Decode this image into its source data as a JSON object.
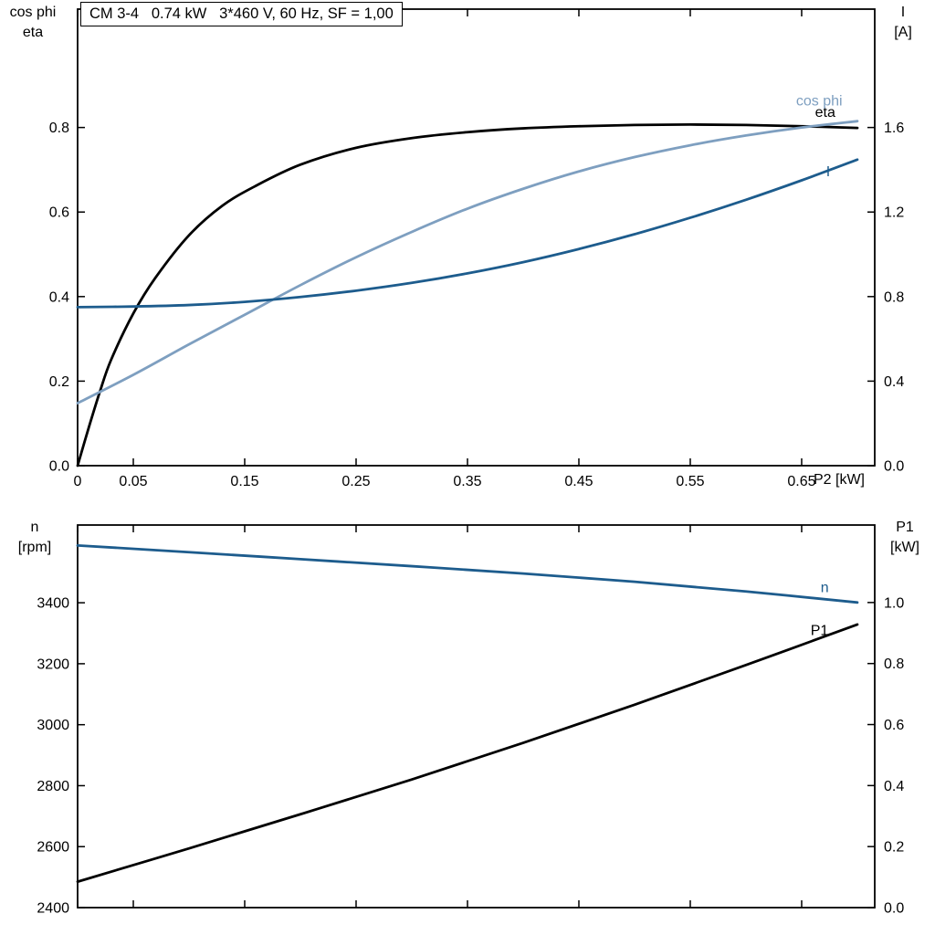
{
  "title": "CM 3-4   0.74 kW   3*460 V, 60 Hz, SF = 1,00",
  "colors": {
    "frame": "#000000",
    "black_curve": "#000000",
    "dark_blue": "#1d5c8d",
    "light_blue": "#7e9fc0",
    "background": "#ffffff",
    "text": "#000000"
  },
  "chart_data": [
    {
      "type": "line",
      "title": "CM 3-4   0.74 kW   3*460 V, 60 Hz, SF = 1,00",
      "x_axis": {
        "label": "P2 [kW]",
        "tick_labels": [
          "0",
          "0.05",
          "0.15",
          "0.25",
          "0.35",
          "0.45",
          "0.55",
          "0.65"
        ],
        "tick_values": [
          0,
          0.05,
          0.15,
          0.25,
          0.35,
          0.45,
          0.55,
          0.65
        ],
        "range": [
          0,
          0.7156
        ],
        "show_labels": true,
        "grid": false
      },
      "left_axis": {
        "label_line1": "cos phi",
        "label_line2": "eta",
        "tick_labels": [
          "0.0",
          "0.2",
          "0.4",
          "0.6",
          "0.8"
        ],
        "tick_values": [
          0,
          0.2,
          0.4,
          0.6,
          0.8
        ],
        "range": [
          0,
          1.08
        ]
      },
      "right_axis": {
        "label_line1": "I",
        "label_line2": "[A]",
        "tick_labels": [
          "0.0",
          "0.4",
          "0.8",
          "1.2",
          "1.6"
        ],
        "tick_values": [
          0,
          0.4,
          0.8,
          1.2,
          1.6
        ],
        "range": [
          0,
          2.16
        ]
      },
      "series": [
        {
          "name": "eta",
          "axis": "left",
          "color_key": "black_curve",
          "width": 2.8,
          "x": [
            0,
            0.01,
            0.02,
            0.03,
            0.05,
            0.07,
            0.1,
            0.13,
            0.16,
            0.2,
            0.25,
            0.3,
            0.35,
            0.4,
            0.45,
            0.5,
            0.55,
            0.6,
            0.65,
            0.7
          ],
          "y": [
            0,
            0.09,
            0.175,
            0.25,
            0.36,
            0.445,
            0.545,
            0.615,
            0.662,
            0.712,
            0.752,
            0.775,
            0.789,
            0.798,
            0.803,
            0.806,
            0.807,
            0.806,
            0.803,
            0.799
          ],
          "label": {
            "text": "eta",
            "x": 0.662,
            "y": 0.825
          }
        },
        {
          "name": "cos phi",
          "axis": "left",
          "color_key": "light_blue",
          "width": 2.8,
          "x": [
            0,
            0.05,
            0.1,
            0.15,
            0.2,
            0.25,
            0.3,
            0.35,
            0.4,
            0.45,
            0.5,
            0.55,
            0.6,
            0.65,
            0.7
          ],
          "y": [
            0.148,
            0.215,
            0.287,
            0.357,
            0.427,
            0.493,
            0.553,
            0.608,
            0.655,
            0.696,
            0.73,
            0.758,
            0.781,
            0.8,
            0.815
          ],
          "label": {
            "text": "cos phi",
            "x": 0.645,
            "y": 0.852
          }
        },
        {
          "name": "I",
          "axis": "right",
          "color_key": "dark_blue",
          "width": 2.8,
          "x": [
            0,
            0.05,
            0.1,
            0.15,
            0.2,
            0.25,
            0.3,
            0.35,
            0.4,
            0.45,
            0.5,
            0.55,
            0.6,
            0.65,
            0.7
          ],
          "y": [
            0.75,
            0.753,
            0.76,
            0.775,
            0.798,
            0.828,
            0.865,
            0.91,
            0.963,
            1.025,
            1.095,
            1.173,
            1.258,
            1.35,
            1.448
          ],
          "label": {
            "text": "I",
            "x": 0.672,
            "y": 1.37
          }
        }
      ]
    },
    {
      "type": "line",
      "title": "",
      "x_axis": {
        "label": "",
        "tick_labels": [],
        "tick_values": [
          0,
          0.05,
          0.15,
          0.25,
          0.35,
          0.45,
          0.55,
          0.65
        ],
        "range": [
          0,
          0.7156
        ],
        "show_labels": false,
        "grid": false
      },
      "left_axis": {
        "label_line1": "n",
        "label_line2": "[rpm]",
        "tick_labels": [
          "2400",
          "2600",
          "2800",
          "3000",
          "3200",
          "3400"
        ],
        "tick_values": [
          2400,
          2600,
          2800,
          3000,
          3200,
          3400
        ],
        "range": [
          2400,
          3655
        ]
      },
      "right_axis": {
        "label_line1": "P1",
        "label_line2": "[kW]",
        "tick_labels": [
          "0.0",
          "0.2",
          "0.4",
          "0.6",
          "0.8",
          "1.0"
        ],
        "tick_values": [
          0,
          0.2,
          0.4,
          0.6,
          0.8,
          1.0
        ],
        "range": [
          0,
          1.254
        ]
      },
      "series": [
        {
          "name": "n",
          "axis": "left",
          "color_key": "dark_blue",
          "width": 2.8,
          "x": [
            0,
            0.1,
            0.2,
            0.3,
            0.4,
            0.5,
            0.6,
            0.7
          ],
          "y": [
            3588,
            3566,
            3543,
            3520,
            3496,
            3469,
            3437,
            3401
          ],
          "label": {
            "text": "n",
            "x": 0.667,
            "y": 3435
          }
        },
        {
          "name": "P1",
          "axis": "right",
          "color_key": "black_curve",
          "width": 2.8,
          "x": [
            0,
            0.1,
            0.2,
            0.3,
            0.4,
            0.5,
            0.6,
            0.7
          ],
          "y": [
            0.085,
            0.194,
            0.306,
            0.42,
            0.54,
            0.665,
            0.795,
            0.928
          ],
          "label": {
            "text": "P1",
            "x": 0.658,
            "y": 0.893
          }
        }
      ]
    }
  ]
}
